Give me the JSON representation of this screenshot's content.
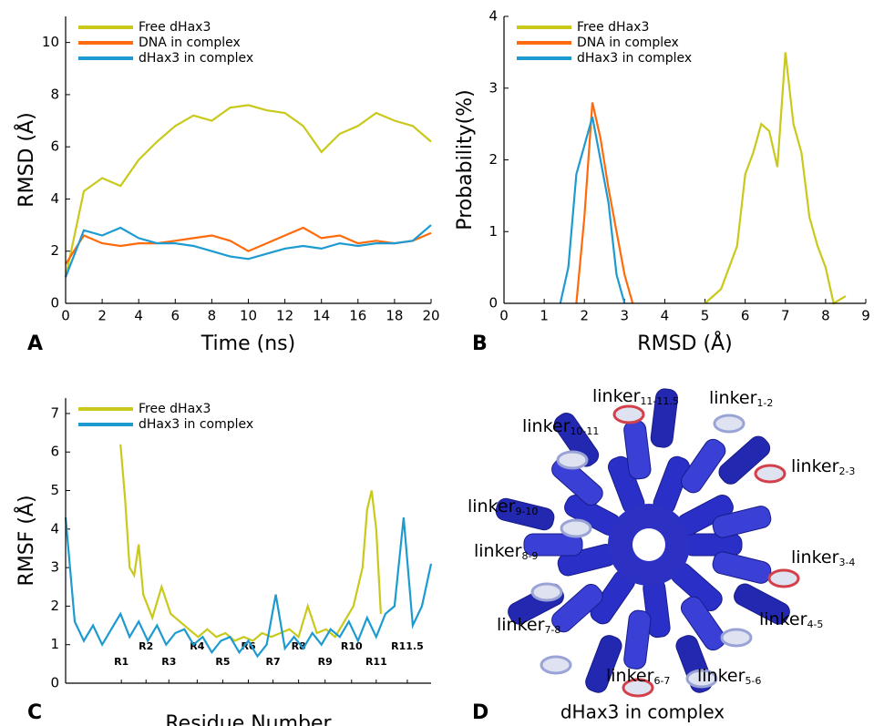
{
  "chart_data": [
    {
      "type": "line",
      "ylabel": "RMSD (Å)",
      "xlabel": "Time (ns)",
      "x": [
        0,
        1,
        2,
        3,
        4,
        5,
        6,
        7,
        8,
        9,
        10,
        11,
        12,
        13,
        14,
        15,
        16,
        17,
        18,
        19,
        20
      ],
      "xlim": [
        0,
        20
      ],
      "xticks": [
        0,
        2,
        4,
        6,
        8,
        10,
        12,
        14,
        16,
        18,
        20
      ],
      "ylim": [
        0,
        11
      ],
      "yticks": [
        0,
        2,
        4,
        6,
        8,
        10
      ],
      "series": [
        {
          "name": "Free dHax3",
          "color": "#c9c91c",
          "values": [
            1,
            4.3,
            4.8,
            4.5,
            5.5,
            6.2,
            6.8,
            7.2,
            7.0,
            7.5,
            7.6,
            7.4,
            7.3,
            6.8,
            5.8,
            6.5,
            6.8,
            7.3,
            7.0,
            6.8,
            6.2
          ]
        },
        {
          "name": "DNA in complex",
          "color": "#ff6a0a",
          "values": [
            1.5,
            2.6,
            2.3,
            2.2,
            2.3,
            2.3,
            2.4,
            2.5,
            2.6,
            2.4,
            2.0,
            2.3,
            2.6,
            2.9,
            2.5,
            2.6,
            2.3,
            2.4,
            2.3,
            2.4,
            2.7
          ]
        },
        {
          "name": "dHax3 in complex",
          "color": "#1d9bd1",
          "values": [
            1.0,
            2.8,
            2.6,
            2.9,
            2.5,
            2.3,
            2.3,
            2.2,
            2.0,
            1.8,
            1.7,
            1.9,
            2.1,
            2.2,
            2.1,
            2.3,
            2.2,
            2.3,
            2.3,
            2.4,
            3.0
          ]
        }
      ]
    },
    {
      "type": "line",
      "ylabel": "Probability(%)",
      "xlabel": "RMSD (Å)",
      "xlim": [
        0,
        9
      ],
      "xticks": [
        0,
        1,
        2,
        3,
        4,
        5,
        6,
        7,
        8,
        9
      ],
      "ylim": [
        0,
        4
      ],
      "yticks": [
        0,
        1,
        2,
        3,
        4
      ],
      "series": [
        {
          "name": "Free dHax3",
          "color": "#c9c91c",
          "x": [
            5.0,
            5.4,
            5.8,
            6.0,
            6.2,
            6.4,
            6.6,
            6.8,
            7.0,
            7.2,
            7.4,
            7.6,
            7.8,
            8.0,
            8.2,
            8.5
          ],
          "values": [
            0,
            0.2,
            0.8,
            1.8,
            2.1,
            2.5,
            2.4,
            1.9,
            3.5,
            2.5,
            2.1,
            1.2,
            0.8,
            0.5,
            0,
            0.1
          ]
        },
        {
          "name": "DNA in complex",
          "color": "#ff6a0a",
          "x": [
            1.8,
            2.0,
            2.2,
            2.4,
            2.6,
            2.8,
            3.0,
            3.2
          ],
          "values": [
            0,
            1.2,
            2.8,
            2.3,
            1.6,
            1.0,
            0.4,
            0
          ]
        },
        {
          "name": "dHax3 in complex",
          "color": "#1d9bd1",
          "x": [
            1.4,
            1.6,
            1.8,
            2.0,
            2.2,
            2.4,
            2.6,
            2.8,
            3.0
          ],
          "values": [
            0,
            0.5,
            1.8,
            2.2,
            2.6,
            2.0,
            1.4,
            0.4,
            0
          ]
        }
      ]
    },
    {
      "type": "line",
      "ylabel": "RMSF (Å)",
      "xlabel": "Residue Number",
      "xlim": [
        0,
        400
      ],
      "xticks": [
        {
          "value": 61,
          "label": "R1"
        },
        {
          "value": 88,
          "label": "R2"
        },
        {
          "value": 113,
          "label": "R3"
        },
        {
          "value": 144,
          "label": "R4"
        },
        {
          "value": 172,
          "label": "R5"
        },
        {
          "value": 200,
          "label": "R6"
        },
        {
          "value": 227,
          "label": "R7"
        },
        {
          "value": 255,
          "label": "R8"
        },
        {
          "value": 284,
          "label": "R9"
        },
        {
          "value": 313,
          "label": "R10"
        },
        {
          "value": 340,
          "label": "R11"
        },
        {
          "value": 374,
          "label": "R11.5"
        }
      ],
      "ylim": [
        0,
        7.4
      ],
      "yticks": [
        0,
        1,
        2,
        3,
        4,
        5,
        6,
        7
      ],
      "series": [
        {
          "name": "Free dHax3",
          "color": "#c9c91c",
          "x": [
            60,
            65,
            70,
            75,
            80,
            85,
            95,
            105,
            115,
            125,
            135,
            145,
            155,
            165,
            175,
            185,
            195,
            205,
            215,
            225,
            235,
            245,
            255,
            265,
            275,
            285,
            295,
            305,
            315,
            325,
            330,
            335,
            340,
            345
          ],
          "values": [
            6.2,
            4.8,
            3.0,
            2.8,
            3.6,
            2.3,
            1.7,
            2.5,
            1.8,
            1.6,
            1.4,
            1.2,
            1.4,
            1.2,
            1.3,
            1.1,
            1.2,
            1.1,
            1.3,
            1.2,
            1.3,
            1.4,
            1.2,
            2.0,
            1.3,
            1.4,
            1.2,
            1.6,
            2.0,
            3.0,
            4.5,
            5.0,
            4.0,
            1.8
          ]
        },
        {
          "name": "dHax3 in complex",
          "color": "#1d9bd1",
          "x": [
            0,
            10,
            20,
            30,
            40,
            50,
            60,
            70,
            80,
            90,
            100,
            110,
            120,
            130,
            140,
            150,
            160,
            170,
            180,
            190,
            200,
            210,
            220,
            230,
            240,
            250,
            260,
            270,
            280,
            290,
            300,
            310,
            320,
            330,
            340,
            350,
            360,
            370,
            380,
            390,
            400
          ],
          "values": [
            4.3,
            1.6,
            1.1,
            1.5,
            1.0,
            1.4,
            1.8,
            1.2,
            1.6,
            1.1,
            1.5,
            1.0,
            1.3,
            1.4,
            1.0,
            1.2,
            0.8,
            1.1,
            1.2,
            0.8,
            1.1,
            0.7,
            1.0,
            2.3,
            0.9,
            1.2,
            0.9,
            1.3,
            1.0,
            1.4,
            1.2,
            1.6,
            1.1,
            1.7,
            1.2,
            1.8,
            2.0,
            4.3,
            1.5,
            2.0,
            3.1
          ]
        }
      ]
    }
  ],
  "panel_labels": [
    "A",
    "B",
    "C",
    "D"
  ],
  "structure": {
    "caption": "dHax3 in complex",
    "labels": [
      {
        "text": "linker",
        "sub": "11-11.5"
      },
      {
        "text": "linker",
        "sub": "1-2"
      },
      {
        "text": "linker",
        "sub": "10-11"
      },
      {
        "text": "linker",
        "sub": "2-3"
      },
      {
        "text": "linker",
        "sub": "9-10"
      },
      {
        "text": "linker",
        "sub": "8-9"
      },
      {
        "text": "linker",
        "sub": "3-4"
      },
      {
        "text": "linker",
        "sub": "7-8"
      },
      {
        "text": "linker",
        "sub": "4-5"
      },
      {
        "text": "linker",
        "sub": "6-7"
      },
      {
        "text": "linker",
        "sub": "5-6"
      }
    ]
  }
}
